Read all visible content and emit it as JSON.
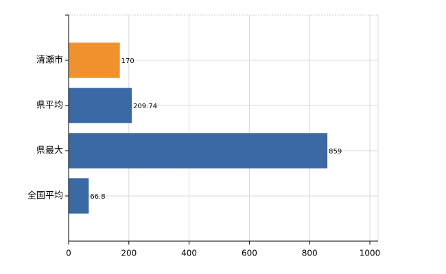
{
  "chart_data": {
    "type": "hbar",
    "categories": [
      "清瀬市",
      "県平均",
      "県最大",
      "全国平均"
    ],
    "values": [
      170,
      209.74,
      859,
      66.8
    ],
    "colors": [
      "#f0922e",
      "#3a69a4",
      "#3a69a4",
      "#3a69a4"
    ],
    "xlim": [
      0,
      1000
    ],
    "xticks": [
      0,
      200,
      400,
      600,
      800,
      1000
    ],
    "grid": true
  }
}
